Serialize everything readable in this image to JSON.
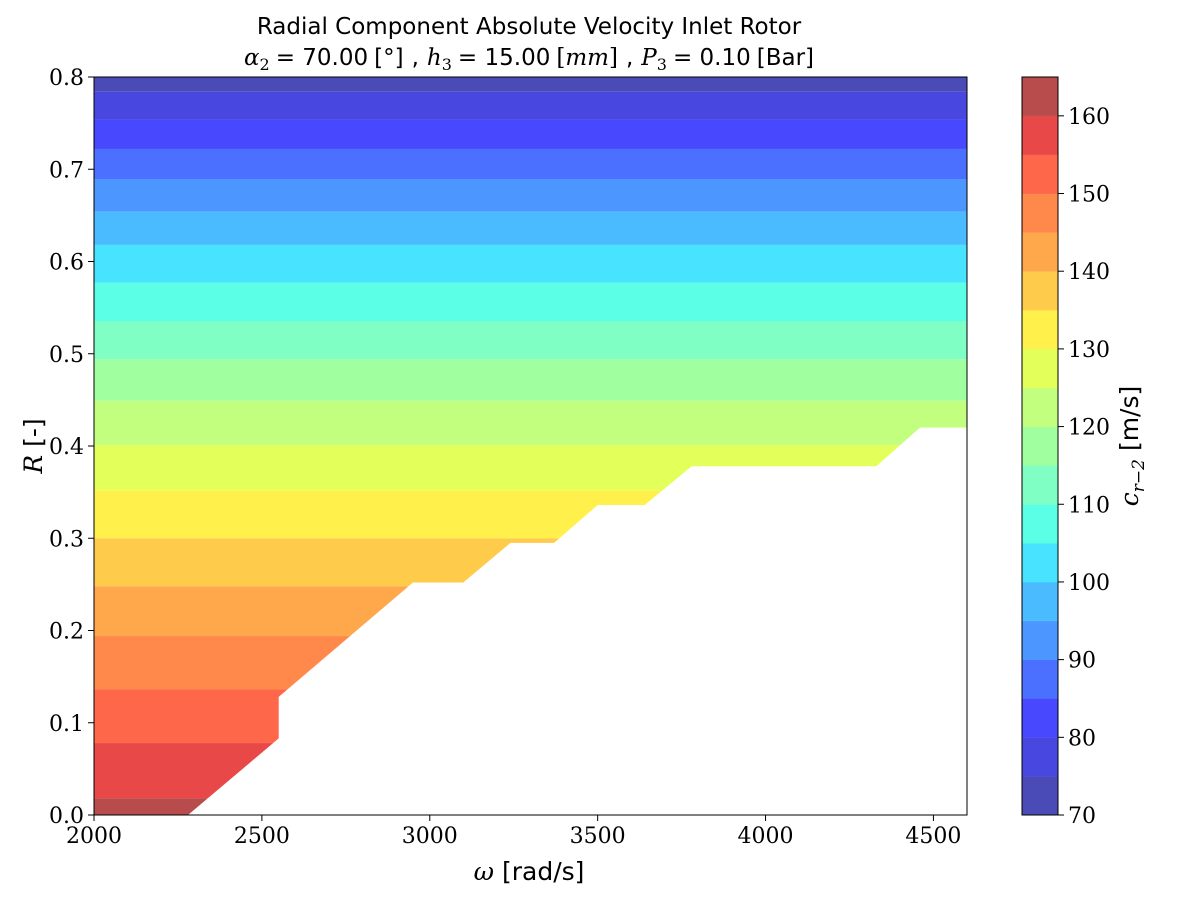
{
  "chart_data": {
    "type": "contourf",
    "title": "Radial Component Absolute Velocity Inlet Rotor",
    "subtitle": {
      "alpha_label": "α",
      "alpha_sub": "2",
      "alpha_value": "= 70.00",
      "alpha_unit": "[°]",
      "sep1": ",",
      "h_label": "h",
      "h_sub": "3",
      "h_value": "= 15.00",
      "h_unit_open": "[",
      "h_unit": "mm",
      "h_unit_close": "]",
      "sep2": ",",
      "p_label": "P",
      "p_sub": "3",
      "p_value": "= 0.10",
      "p_unit": "[Bar]"
    },
    "xlabel": {
      "symbol": "ω",
      "text": "[rad/s]"
    },
    "ylabel": {
      "symbol": "R",
      "text": "[-]"
    },
    "xlim": [
      2000,
      4600
    ],
    "ylim": [
      0.0,
      0.8
    ],
    "xticks": [
      {
        "value": 2000,
        "label": "2000"
      },
      {
        "value": 2500,
        "label": "2500"
      },
      {
        "value": 3000,
        "label": "3000"
      },
      {
        "value": 3500,
        "label": "3500"
      },
      {
        "value": 4000,
        "label": "4000"
      },
      {
        "value": 4500,
        "label": "4500"
      }
    ],
    "yticks": [
      {
        "value": 0.0,
        "label": "0.0"
      },
      {
        "value": 0.1,
        "label": "0.1"
      },
      {
        "value": 0.2,
        "label": "0.2"
      },
      {
        "value": 0.3,
        "label": "0.3"
      },
      {
        "value": 0.4,
        "label": "0.4"
      },
      {
        "value": 0.5,
        "label": "0.5"
      },
      {
        "value": 0.6,
        "label": "0.6"
      },
      {
        "value": 0.7,
        "label": "0.7"
      },
      {
        "value": 0.8,
        "label": "0.8"
      }
    ],
    "colorbar": {
      "label_symbol": "c",
      "label_sub": "r−2",
      "label_unit": "[m/s]",
      "range": [
        70,
        165
      ],
      "levels": [
        70,
        75,
        80,
        85,
        90,
        95,
        100,
        105,
        110,
        115,
        120,
        125,
        130,
        135,
        140,
        145,
        150,
        155,
        160,
        165
      ],
      "colors": [
        "#4b4bb8",
        "#4848e0",
        "#4848ff",
        "#4b70ff",
        "#4b97ff",
        "#4bbbff",
        "#48e3ff",
        "#5affe6",
        "#7fffc3",
        "#a0ff9e",
        "#c3ff7f",
        "#e3ff5a",
        "#fff04b",
        "#ffcb4b",
        "#ffa74b",
        "#ff894b",
        "#ff674b",
        "#e84848",
        "#b84b4b"
      ],
      "ticks": [
        {
          "value": 70,
          "label": "70"
        },
        {
          "value": 80,
          "label": "80"
        },
        {
          "value": 90,
          "label": "90"
        },
        {
          "value": 100,
          "label": "100"
        },
        {
          "value": 110,
          "label": "110"
        },
        {
          "value": 120,
          "label": "120"
        },
        {
          "value": 130,
          "label": "130"
        },
        {
          "value": 140,
          "label": "140"
        },
        {
          "value": 150,
          "label": "150"
        },
        {
          "value": 160,
          "label": "160"
        }
      ]
    },
    "bands": [
      {
        "level": [
          165,
          160
        ],
        "color": "#b84b4b",
        "y": [
          0.0,
          0.018
        ]
      },
      {
        "level": [
          160,
          155
        ],
        "color": "#e84848",
        "y": [
          0.018,
          0.078
        ]
      },
      {
        "level": [
          155,
          150
        ],
        "color": "#ff674b",
        "y": [
          0.078,
          0.136
        ]
      },
      {
        "level": [
          150,
          145
        ],
        "color": "#ff894b",
        "y": [
          0.136,
          0.194
        ]
      },
      {
        "level": [
          145,
          140
        ],
        "color": "#ffa74b",
        "y": [
          0.194,
          0.248
        ]
      },
      {
        "level": [
          140,
          135
        ],
        "color": "#ffcb4b",
        "y": [
          0.248,
          0.3
        ]
      },
      {
        "level": [
          135,
          130
        ],
        "color": "#fff04b",
        "y": [
          0.3,
          0.352
        ]
      },
      {
        "level": [
          130,
          125
        ],
        "color": "#e3ff5a",
        "y": [
          0.352,
          0.401
        ]
      },
      {
        "level": [
          125,
          120
        ],
        "color": "#c3ff7f",
        "y": [
          0.401,
          0.449
        ]
      },
      {
        "level": [
          120,
          115
        ],
        "color": "#a0ff9e",
        "y": [
          0.449,
          0.494
        ]
      },
      {
        "level": [
          115,
          110
        ],
        "color": "#7fffc3",
        "y": [
          0.494,
          0.535
        ]
      },
      {
        "level": [
          110,
          105
        ],
        "color": "#5affe6",
        "y": [
          0.535,
          0.577
        ]
      },
      {
        "level": [
          105,
          100
        ],
        "color": "#48e3ff",
        "y": [
          0.577,
          0.618
        ]
      },
      {
        "level": [
          100,
          95
        ],
        "color": "#4bbbff",
        "y": [
          0.618,
          0.654
        ]
      },
      {
        "level": [
          95,
          90
        ],
        "color": "#4b97ff",
        "y": [
          0.654,
          0.689
        ]
      },
      {
        "level": [
          90,
          85
        ],
        "color": "#4b70ff",
        "y": [
          0.689,
          0.722
        ]
      },
      {
        "level": [
          85,
          80
        ],
        "color": "#4848ff",
        "y": [
          0.722,
          0.754
        ]
      },
      {
        "level": [
          80,
          75
        ],
        "color": "#4848e0",
        "y": [
          0.754,
          0.784
        ]
      },
      {
        "level": [
          75,
          70
        ],
        "color": "#4b4bb8",
        "y": [
          0.784,
          0.8
        ]
      }
    ],
    "valid_region_boundary": [
      [
        2000,
        0.0
      ],
      [
        2280,
        0.0
      ],
      [
        2550,
        0.083
      ],
      [
        2550,
        0.128
      ],
      [
        2950,
        0.252
      ],
      [
        3100,
        0.252
      ],
      [
        3240,
        0.295
      ],
      [
        3370,
        0.295
      ],
      [
        3500,
        0.336
      ],
      [
        3640,
        0.336
      ],
      [
        3780,
        0.378
      ],
      [
        4330,
        0.378
      ],
      [
        4460,
        0.42
      ],
      [
        4600,
        0.42
      ],
      [
        4600,
        0.8
      ],
      [
        2000,
        0.8
      ]
    ]
  }
}
